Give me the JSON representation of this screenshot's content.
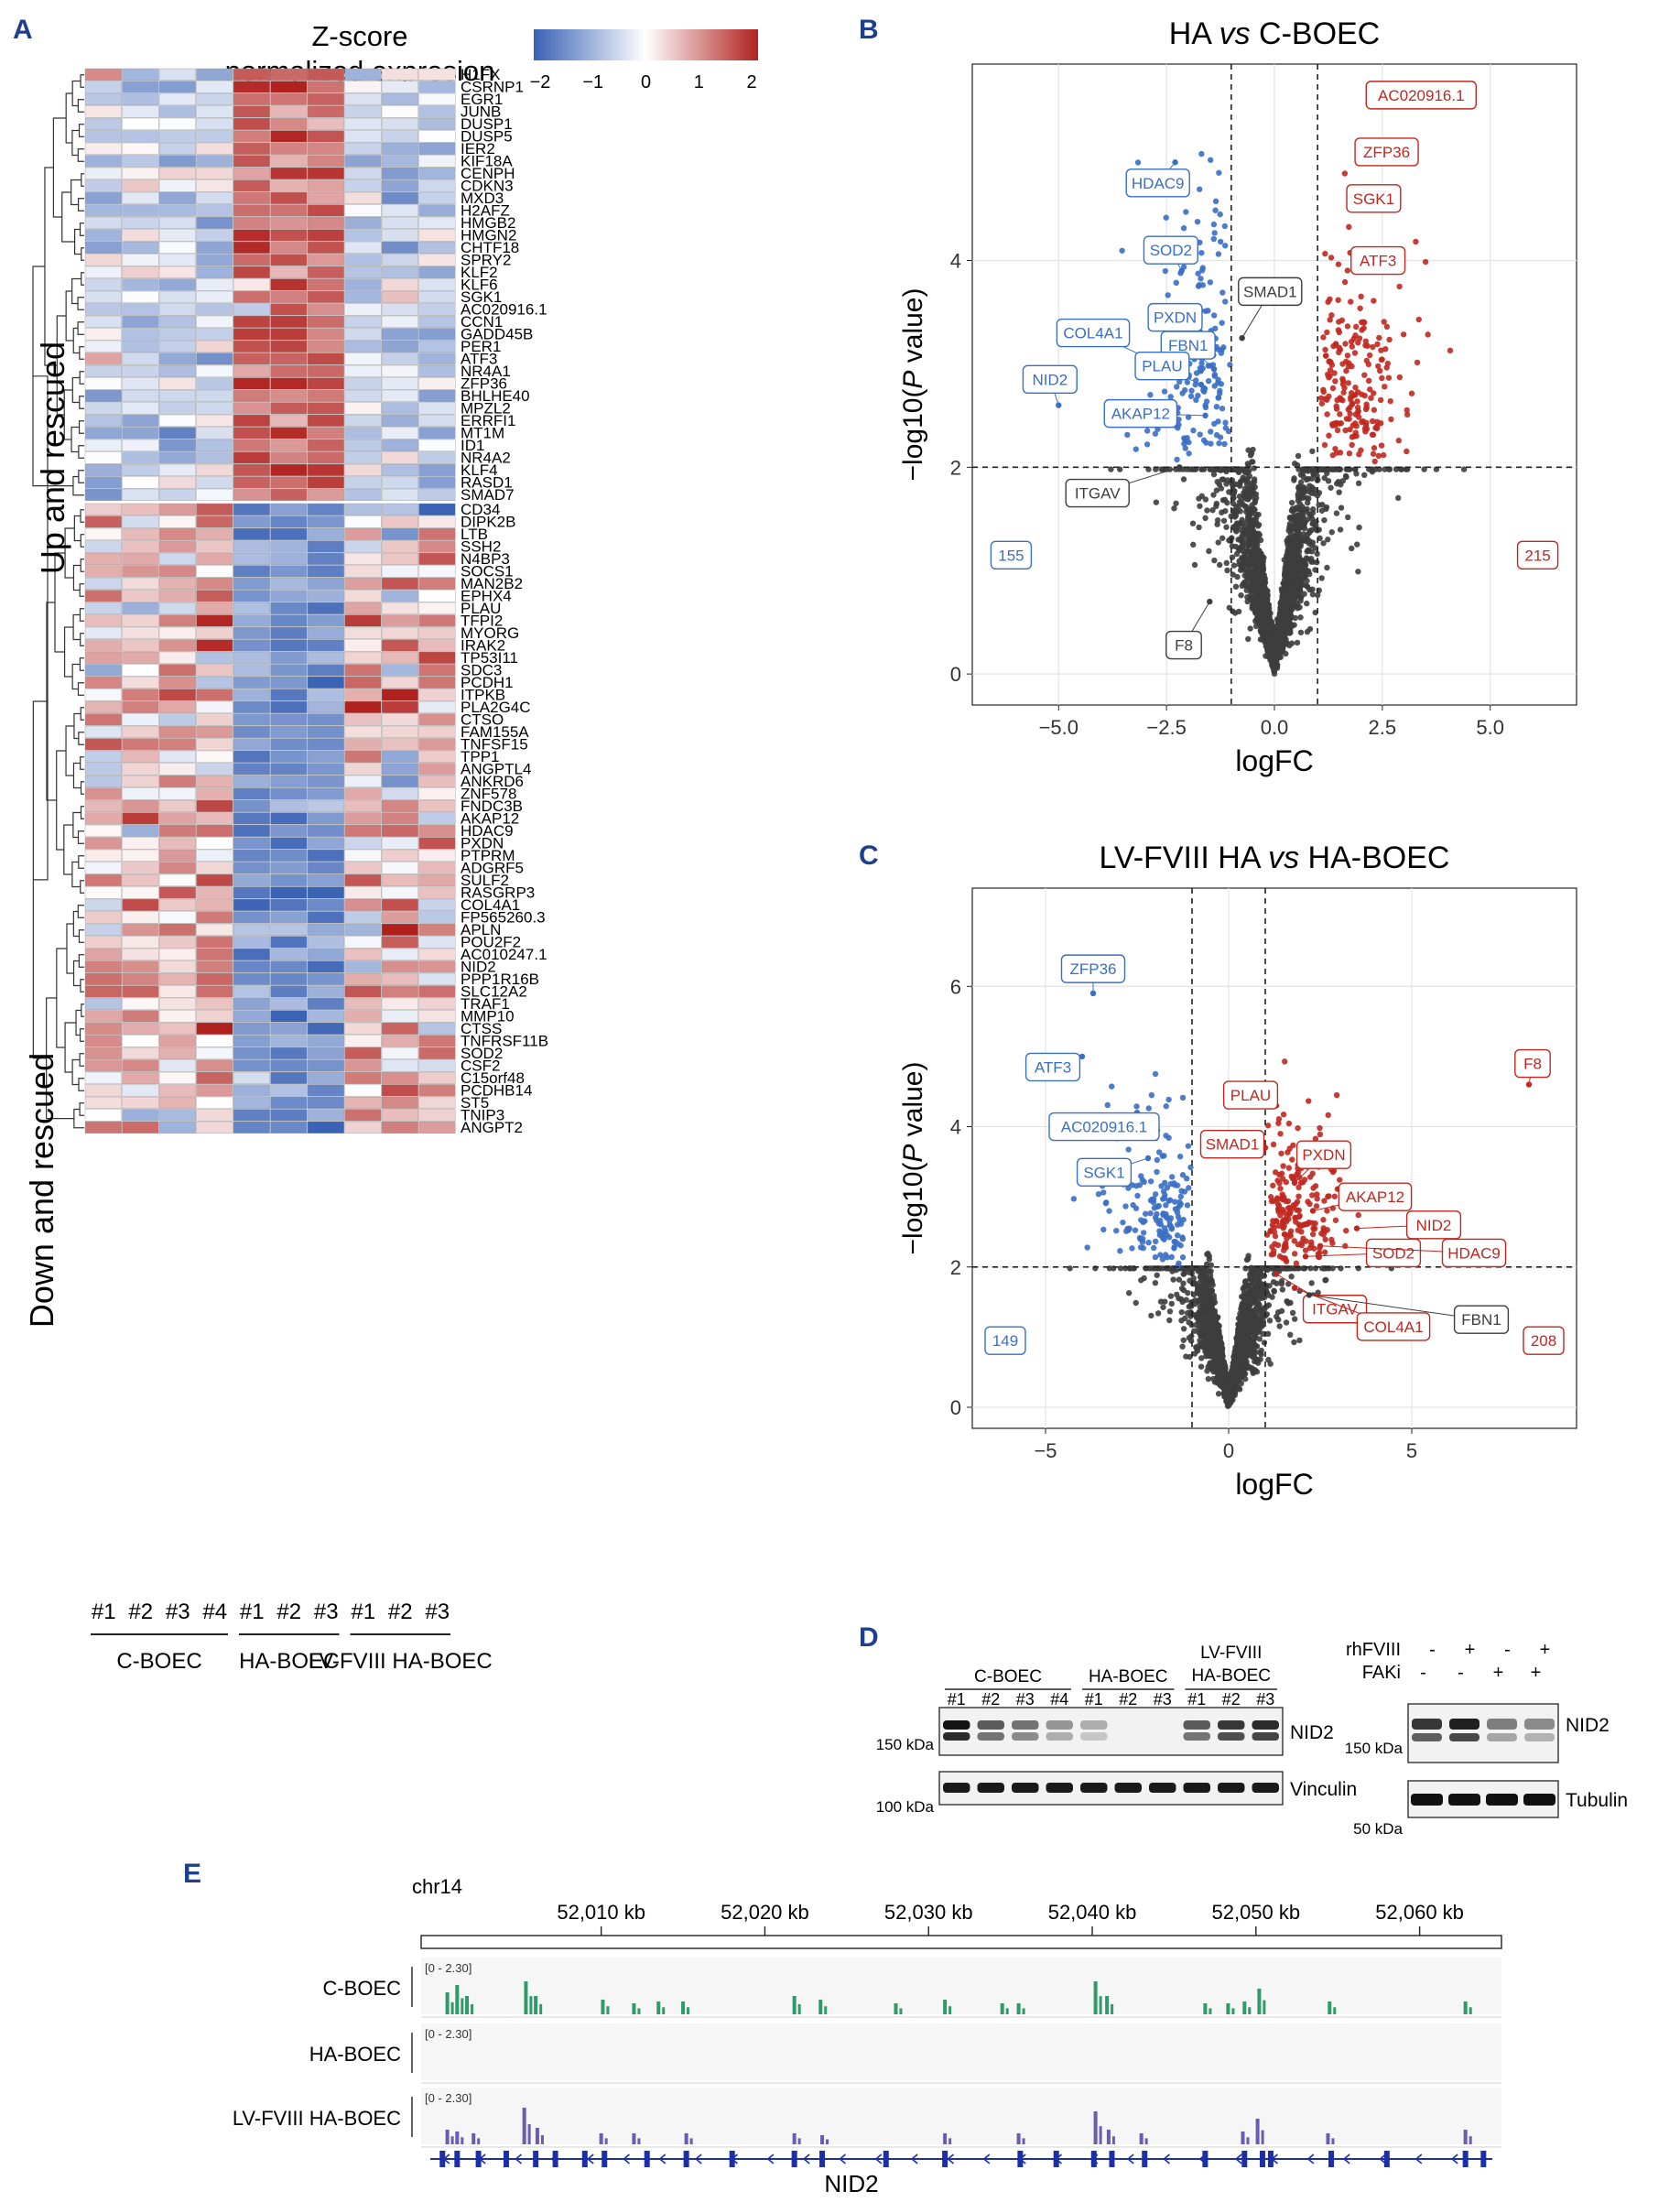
{
  "panels": {
    "A": "A",
    "B": "B",
    "C": "C",
    "D": "D",
    "E": "E"
  },
  "heatmap": {
    "legend_title_line1": "Z-score",
    "legend_title_line2": "normalized expresion",
    "legend_ticks": [
      "−2",
      "−1",
      "0",
      "1",
      "2"
    ],
    "legend_colors": {
      "low": "#3a62b5",
      "mid": "#ffffff",
      "high": "#b0211e"
    },
    "group_up_label": "Up and rescued",
    "group_down_label": "Down and rescued",
    "sample_labels": [
      "#1",
      "#2",
      "#3",
      "#4",
      "#1",
      "#2",
      "#3",
      "#1",
      "#2",
      "#3"
    ],
    "groups": [
      "C-BOEC",
      "HA-BOEC",
      "LV-FVIII HA-BOEC"
    ],
    "up_genes": [
      "H1FX",
      "CSRNP1",
      "EGR1",
      "JUNB",
      "DUSP1",
      "DUSP5",
      "IER2",
      "KIF18A",
      "CENPH",
      "CDKN3",
      "MXD3",
      "H2AFZ",
      "HMGB2",
      "HMGN2",
      "CHTF18",
      "SPRY2",
      "KLF2",
      "KLF6",
      "SGK1",
      "AC020916.1",
      "CCN1",
      "GADD45B",
      "PER1",
      "ATF3",
      "NR4A1",
      "ZFP36",
      "BHLHE40",
      "MPZL2",
      "ERRFI1",
      "MT1M",
      "ID1",
      "NR4A2",
      "KLF4",
      "RASD1",
      "SMAD7"
    ],
    "down_genes": [
      "CD34",
      "DIPK2B",
      "LTB",
      "SSH2",
      "N4BP3",
      "SOCS1",
      "MAN2B2",
      "EPHX4",
      "PLAU",
      "TFPI2",
      "MYORG",
      "IRAK2",
      "TP53I11",
      "SDC3",
      "PCDH1",
      "ITPKB",
      "PLA2G4C",
      "CTSO",
      "FAM155A",
      "TNFSF15",
      "TPP1",
      "ANGPTL4",
      "ANKRD6",
      "ZNF578",
      "FNDC3B",
      "AKAP12",
      "HDAC9",
      "PXDN",
      "PTPRM",
      "ADGRF5",
      "SULF2",
      "RASGRP3",
      "COL4A1",
      "FP565260.3",
      "APLN",
      "POU2F2",
      "AC010247.1",
      "NID2",
      "PPP1R16B",
      "SLC12A2",
      "TRAF1",
      "MMP10",
      "CTSS",
      "TNFRSF11B",
      "SOD2",
      "CSF2",
      "C15orf48",
      "PCDHB14",
      "ST5",
      "TNIP3",
      "ANGPT2"
    ]
  },
  "chart_data": [
    {
      "type": "scatter",
      "title_prefix": "HA ",
      "title_vs": "vs",
      "title_suffix": " C-BOEC",
      "xlabel": "logFC",
      "ylabel_prefix": "−log10(",
      "ylabel_italic": "P",
      "ylabel_suffix": " value)",
      "xlim": [
        -7,
        7
      ],
      "ylim": [
        -0.3,
        5.9
      ],
      "xticks": [
        -5.0,
        -2.5,
        0.0,
        2.5,
        5.0
      ],
      "xticklabels": [
        "−5.0",
        "−2.5",
        "0.0",
        "2.5",
        "5.0"
      ],
      "yticks": [
        0,
        2,
        4
      ],
      "yticklabels": [
        "0",
        "2",
        "4"
      ],
      "vlines": [
        -1,
        1
      ],
      "hline": 2,
      "n_down": "155",
      "n_up": "215",
      "colors": {
        "down": "#3a6fc4",
        "up": "#c0281f",
        "ns": "#3d3d3d"
      },
      "labels": [
        {
          "text": "AC020916.1",
          "color": "up",
          "x": 3.4,
          "y": 5.6,
          "px": 2.3,
          "py": 5.62
        },
        {
          "text": "ZFP36",
          "color": "up",
          "x": 2.6,
          "y": 5.05,
          "px": 2.65,
          "py": 5.05
        },
        {
          "text": "SGK1",
          "color": "up",
          "x": 2.3,
          "y": 4.6,
          "px": 2.3,
          "py": 4.6
        },
        {
          "text": "ATF3",
          "color": "up",
          "x": 2.4,
          "y": 4.0,
          "px": 2.2,
          "py": 4.05
        },
        {
          "text": "HDAC9",
          "color": "down",
          "x": -2.7,
          "y": 4.75,
          "px": -2.3,
          "py": 4.95
        },
        {
          "text": "SOD2",
          "color": "down",
          "x": -2.4,
          "y": 4.1,
          "px": -2.15,
          "py": 3.9
        },
        {
          "text": "SMAD1",
          "color": "ns",
          "x": -0.1,
          "y": 3.7,
          "px": -0.75,
          "py": 3.25
        },
        {
          "text": "PXDN",
          "color": "down",
          "x": -2.3,
          "y": 3.45,
          "px": -2.0,
          "py": 3.25
        },
        {
          "text": "COL4A1",
          "color": "down",
          "x": -4.2,
          "y": 3.3,
          "px": -2.9,
          "py": 3.05
        },
        {
          "text": "FBN1",
          "color": "down",
          "x": -2.0,
          "y": 3.18,
          "px": -1.4,
          "py": 2.95
        },
        {
          "text": "PLAU",
          "color": "down",
          "x": -2.6,
          "y": 2.98,
          "px": -1.7,
          "py": 2.8
        },
        {
          "text": "NID2",
          "color": "down",
          "x": -5.2,
          "y": 2.85,
          "px": -5.0,
          "py": 2.6
        },
        {
          "text": "AKAP12",
          "color": "down",
          "x": -3.1,
          "y": 2.52,
          "px": -1.6,
          "py": 2.5
        },
        {
          "text": "ITGAV",
          "color": "ns",
          "x": -4.1,
          "y": 1.75,
          "px": -2.2,
          "py": 2.0
        },
        {
          "text": "F8",
          "color": "ns",
          "x": -2.1,
          "y": 0.28,
          "px": -1.5,
          "py": 0.7
        }
      ]
    },
    {
      "type": "scatter",
      "title_prefix": "LV-FVIII HA ",
      "title_vs": "vs",
      "title_suffix": " HA-BOEC",
      "xlabel": "logFC",
      "ylabel_prefix": "−log10(",
      "ylabel_italic": "P",
      "ylabel_suffix": " value)",
      "xlim": [
        -7,
        9.5
      ],
      "ylim": [
        -0.3,
        7.4
      ],
      "xticks": [
        -5,
        0,
        5
      ],
      "xticklabels": [
        "−5",
        "0",
        "5"
      ],
      "yticks": [
        0,
        2,
        4,
        6
      ],
      "yticklabels": [
        "0",
        "2",
        "4",
        "6"
      ],
      "vlines": [
        -1,
        1
      ],
      "hline": 2,
      "n_down": "149",
      "n_up": "208",
      "colors": {
        "down": "#3a6fc4",
        "up": "#c0281f",
        "ns": "#3d3d3d"
      },
      "labels": [
        {
          "text": "ZFP36",
          "color": "down",
          "x": -3.7,
          "y": 6.25,
          "px": -3.7,
          "py": 5.9
        },
        {
          "text": "ATF3",
          "color": "down",
          "x": -4.8,
          "y": 4.85,
          "px": -4.0,
          "py": 5.0
        },
        {
          "text": "F8",
          "color": "up",
          "x": 8.3,
          "y": 4.9,
          "px": 8.2,
          "py": 4.6
        },
        {
          "text": "PLAU",
          "color": "up",
          "x": 0.6,
          "y": 4.45,
          "px": 1.3,
          "py": 4.3
        },
        {
          "text": "AC020916.1",
          "color": "down",
          "x": -3.4,
          "y": 4.0,
          "px": -2.5,
          "py": 4.2
        },
        {
          "text": "SMAD1",
          "color": "up",
          "x": 0.1,
          "y": 3.75,
          "px": 1.0,
          "py": 3.7
        },
        {
          "text": "PXDN",
          "color": "up",
          "x": 2.6,
          "y": 3.6,
          "px": 1.8,
          "py": 3.2
        },
        {
          "text": "SGK1",
          "color": "down",
          "x": -3.4,
          "y": 3.35,
          "px": -2.2,
          "py": 3.55
        },
        {
          "text": "AKAP12",
          "color": "up",
          "x": 4.0,
          "y": 3.0,
          "px": 2.3,
          "py": 2.8
        },
        {
          "text": "NID2",
          "color": "up",
          "x": 5.6,
          "y": 2.6,
          "px": 3.5,
          "py": 2.55
        },
        {
          "text": "SOD2",
          "color": "up",
          "x": 4.5,
          "y": 2.2,
          "px": 2.1,
          "py": 2.15
        },
        {
          "text": "HDAC9",
          "color": "up",
          "x": 6.7,
          "y": 2.2,
          "px": 2.5,
          "py": 2.3
        },
        {
          "text": "ITGAV",
          "color": "up",
          "x": 2.9,
          "y": 1.4,
          "px": 1.3,
          "py": 1.9
        },
        {
          "text": "COL4A1",
          "color": "up",
          "x": 4.5,
          "y": 1.15,
          "px": 1.8,
          "py": 1.7
        },
        {
          "text": "FBN1",
          "color": "ns",
          "x": 6.9,
          "y": 1.25,
          "px": 2.2,
          "py": 1.6
        }
      ]
    },
    {
      "type": "coverage_track",
      "chrom": "chr14",
      "xlim_kb": [
        51999,
        52065
      ],
      "ticks_kb": [
        52010,
        52020,
        52030,
        52040,
        52050,
        52060
      ],
      "tick_labels": [
        "52,010 kb",
        "52,020 kb",
        "52,030 kb",
        "52,040 kb",
        "52,050 kb",
        "52,060 kb"
      ],
      "tracks": [
        {
          "name": "C-BOEC",
          "range": "[0 - 2.30]",
          "color": "#2f9a6a",
          "peaks": [
            [
              52000.6,
              0.6
            ],
            [
              52001.2,
              0.8
            ],
            [
              52001.8,
              0.5
            ],
            [
              52005.4,
              0.9
            ],
            [
              52006.0,
              0.5
            ],
            [
              52010.1,
              0.4
            ],
            [
              52012.0,
              0.3
            ],
            [
              52013.5,
              0.35
            ],
            [
              52015.0,
              0.35
            ],
            [
              52021.8,
              0.5
            ],
            [
              52023.4,
              0.4
            ],
            [
              52028.0,
              0.3
            ],
            [
              52031.0,
              0.4
            ],
            [
              52034.5,
              0.3
            ],
            [
              52035.5,
              0.3
            ],
            [
              52040.2,
              0.9
            ],
            [
              52040.9,
              0.5
            ],
            [
              52046.9,
              0.3
            ],
            [
              52048.3,
              0.3
            ],
            [
              52049.3,
              0.35
            ],
            [
              52050.2,
              0.7
            ],
            [
              52054.5,
              0.35
            ],
            [
              52062.8,
              0.35
            ]
          ]
        },
        {
          "name": "HA-BOEC",
          "range": "[0 - 2.30]",
          "color": "#2f9a6a",
          "peaks": []
        },
        {
          "name": "LV-FVIII HA-BOEC",
          "range": "[0 - 2.30]",
          "color": "#6a5bb5",
          "peaks": [
            [
              52000.6,
              0.4
            ],
            [
              52001.2,
              0.35
            ],
            [
              52002.2,
              0.3
            ],
            [
              52005.3,
              1.0
            ],
            [
              52006.1,
              0.45
            ],
            [
              52010.0,
              0.3
            ],
            [
              52012.0,
              0.3
            ],
            [
              52015.2,
              0.3
            ],
            [
              52021.8,
              0.3
            ],
            [
              52023.5,
              0.25
            ],
            [
              52031.0,
              0.3
            ],
            [
              52035.5,
              0.3
            ],
            [
              52040.2,
              0.9
            ],
            [
              52041.0,
              0.4
            ],
            [
              52043.0,
              0.3
            ],
            [
              52049.2,
              0.35
            ],
            [
              52050.1,
              0.7
            ],
            [
              52054.4,
              0.3
            ],
            [
              52062.8,
              0.4
            ]
          ]
        }
      ],
      "gene": "NID2",
      "exons_kb": [
        52000.3,
        52001.2,
        52002.5,
        52004.2,
        52006.0,
        52007.2,
        52009.0,
        52010.2,
        52012.8,
        52015.2,
        52018.0,
        52021.8,
        52023.5,
        52027.4,
        52031.0,
        52035.6,
        52037.8,
        52040.1,
        52041.2,
        52043.2,
        52046.9,
        52049.3,
        52050.4,
        52050.9,
        52054.6,
        52058.0,
        52062.8,
        52063.9
      ]
    }
  ],
  "western": {
    "left": {
      "groups": [
        {
          "label": "C-BOEC",
          "lanes": [
            "#1",
            "#2",
            "#3",
            "#4"
          ]
        },
        {
          "label": "HA-BOEC",
          "lanes": [
            "#1",
            "#2",
            "#3"
          ]
        },
        {
          "label_line1": "LV-FVIII",
          "label_line2": "HA-BOEC",
          "lanes": [
            "#1",
            "#2",
            "#3"
          ]
        }
      ],
      "blot1_label": "NID2",
      "blot1_marker": "150 kDa",
      "blot2_label": "Vinculin",
      "blot2_marker": "100 kDa",
      "nid2_intensity": [
        1.0,
        0.7,
        0.6,
        0.45,
        0.35,
        0.0,
        0.0,
        0.7,
        0.85,
        0.9
      ]
    },
    "right": {
      "row1_label": "rhFVIII",
      "row1_signs": [
        "-",
        "+",
        "-",
        "+"
      ],
      "row2_label": "FAKi",
      "row2_signs": [
        "-",
        "-",
        "+",
        "+"
      ],
      "blot1_label": "NID2",
      "blot1_marker": "150 kDa",
      "blot2_label": "Tubulin",
      "blot2_marker": "50 kDa",
      "nid2_intensity": [
        0.85,
        0.95,
        0.55,
        0.5
      ]
    }
  }
}
